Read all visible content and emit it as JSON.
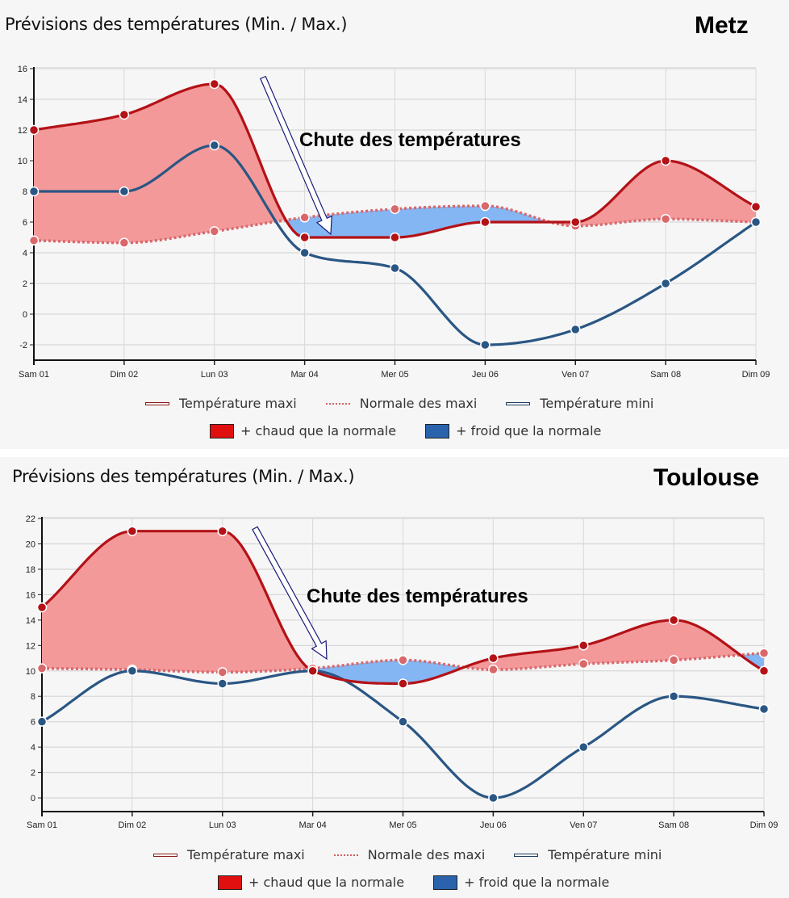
{
  "panels": [
    {
      "id": "metz",
      "title": "Prévisions des températures (Min. / Max.)",
      "city": "Metz",
      "annotation": "Chute des températures",
      "legend": {
        "maxi": "Température maxi",
        "normale": "Normale des maxi",
        "mini": "Température mini",
        "chaud": "+ chaud que la normale",
        "froid": "+ froid que la normale"
      }
    },
    {
      "id": "toulouse",
      "title": "Prévisions des températures (Min. / Max.)",
      "city": "Toulouse",
      "annotation": "Chute des températures",
      "legend": {
        "maxi": "Température maxi",
        "normale": "Normale des maxi",
        "mini": "Température mini",
        "chaud": "+ chaud que la normale",
        "froid": "+ froid que la normale"
      }
    }
  ],
  "colors": {
    "maxi": "#b31217",
    "normale": "#d9686b",
    "mini": "#2a5684",
    "chaud_fill": "#f4999a",
    "froid_fill": "#84b6f4",
    "chaud_legend": "#e01010",
    "froid_legend": "#2a62ac",
    "grid": "#d8d8d8",
    "arrow": "#1b1b7a"
  },
  "chart_data": [
    {
      "type": "line",
      "title": "Prévisions des températures (Min. / Max.) — Metz",
      "categories": [
        "Sam 01",
        "Dim 02",
        "Lun 03",
        "Mar 04",
        "Mer 05",
        "Jeu 06",
        "Ven 07",
        "Sam 08",
        "Dim 09"
      ],
      "series": [
        {
          "name": "Température maxi",
          "values": [
            12,
            13,
            15,
            5,
            5,
            6,
            6,
            10,
            7
          ]
        },
        {
          "name": "Normale des maxi",
          "values": [
            4.8,
            4.65,
            5.4,
            6.3,
            6.85,
            7.05,
            5.75,
            6.2,
            6
          ]
        },
        {
          "name": "Température mini",
          "values": [
            8,
            8,
            11,
            4,
            3,
            -2,
            -1,
            2,
            6
          ]
        }
      ],
      "area_fills": [
        "+ chaud que la normale (maxi > normale)",
        "+ froid que la normale (maxi < normale)"
      ],
      "yticks": [
        16,
        14,
        12,
        10,
        8,
        6,
        4,
        2,
        0,
        -2
      ],
      "ylim": [
        -3,
        16
      ],
      "annotation": "Chute des températures",
      "grid": true,
      "legend_position": "bottom"
    },
    {
      "type": "line",
      "title": "Prévisions des températures (Min. / Max.) — Toulouse",
      "categories": [
        "Sam 01",
        "Dim 02",
        "Lun 03",
        "Mar 04",
        "Mer 05",
        "Jeu 06",
        "Ven 07",
        "Sam 08",
        "Dim 09"
      ],
      "series": [
        {
          "name": "Température maxi",
          "values": [
            15,
            21,
            21,
            10,
            9,
            11,
            12,
            14,
            10
          ]
        },
        {
          "name": "Normale des maxi",
          "values": [
            10.2,
            10.1,
            9.9,
            10.2,
            10.85,
            10.1,
            10.55,
            10.85,
            11.4
          ]
        },
        {
          "name": "Température mini",
          "values": [
            6,
            10,
            9,
            10,
            6,
            0,
            4,
            8,
            7
          ]
        }
      ],
      "area_fills": [
        "+ chaud que la normale (maxi > normale)",
        "+ froid que la normale (maxi < normale)"
      ],
      "yticks": [
        22,
        20,
        18,
        16,
        14,
        12,
        10,
        8,
        6,
        4,
        2,
        0
      ],
      "ylim": [
        -1,
        22
      ],
      "annotation": "Chute des températures",
      "grid": true,
      "legend_position": "bottom"
    }
  ]
}
